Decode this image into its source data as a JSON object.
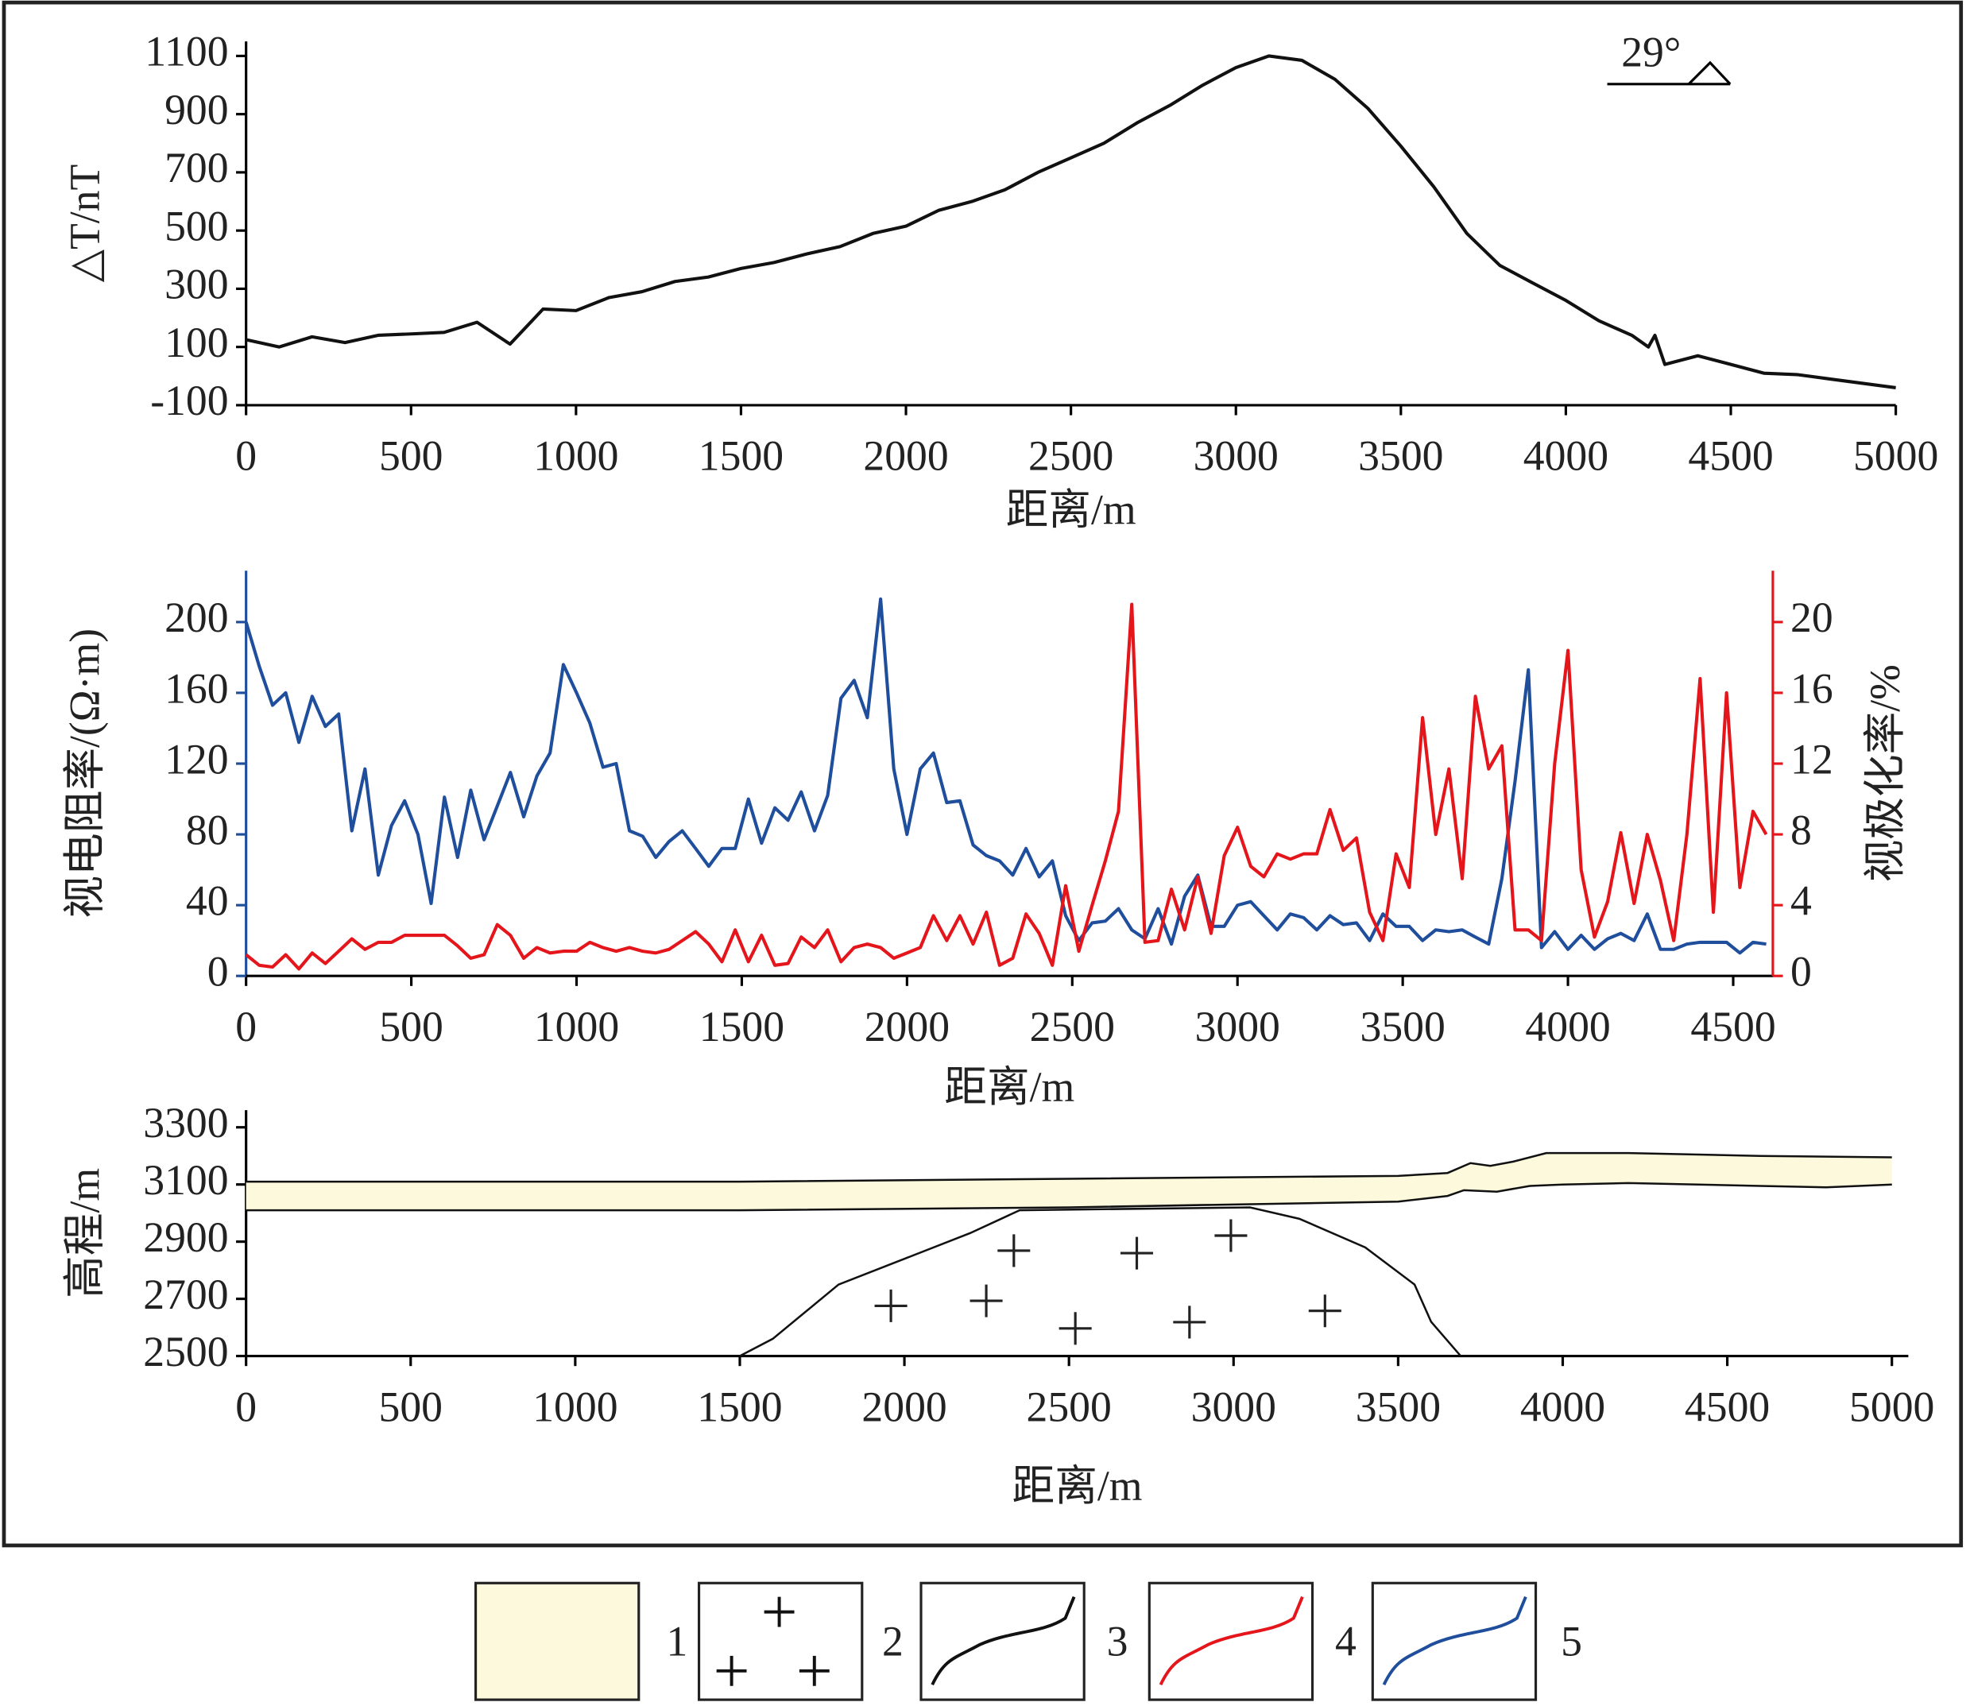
{
  "chart_data": [
    {
      "type": "line",
      "y_label": "△T/nT",
      "x_label": "距离/m",
      "annotation": "29°",
      "xlim": [
        0,
        5000
      ],
      "ylim": [
        -100,
        1150
      ],
      "xticks": [
        0,
        500,
        1000,
        1500,
        2000,
        2500,
        3000,
        3500,
        4000,
        4500,
        5000
      ],
      "yticks": [
        -100,
        100,
        300,
        500,
        700,
        900,
        1100
      ],
      "x": [
        0,
        100,
        200,
        300,
        400,
        500,
        600,
        700,
        800,
        900,
        1000,
        1100,
        1200,
        1300,
        1400,
        1500,
        1600,
        1700,
        1800,
        1900,
        2000,
        2100,
        2200,
        2300,
        2400,
        2500,
        2600,
        2700,
        2800,
        2900,
        3000,
        3100,
        3200,
        3300,
        3400,
        3500,
        3600,
        3700,
        3800,
        3900,
        4000,
        4100,
        4200,
        4250,
        4270,
        4300,
        4400,
        4500,
        4600,
        4700,
        4800,
        4900,
        5000
      ],
      "series": [
        {
          "color": "#111111",
          "values": [
            125,
            100,
            135,
            115,
            140,
            145,
            150,
            185,
            110,
            230,
            225,
            270,
            290,
            325,
            340,
            370,
            390,
            420,
            445,
            490,
            515,
            570,
            600,
            640,
            700,
            750,
            800,
            870,
            930,
            1000,
            1060,
            1100,
            1085,
            1020,
            920,
            790,
            650,
            490,
            380,
            320,
            260,
            190,
            140,
            100,
            140,
            40,
            70,
            40,
            10,
            5,
            -10,
            -25,
            -40
          ]
        }
      ]
    },
    {
      "type": "line",
      "y_label": "视电阻率/(Ω·m)",
      "y2_label": "视极化率/%",
      "x_label": "距离/m",
      "xlim": [
        0,
        4620
      ],
      "ylim": [
        0,
        229
      ],
      "y2lim": [
        0,
        22.9
      ],
      "xticks": [
        0,
        500,
        1000,
        1500,
        2000,
        2500,
        3000,
        3500,
        4000,
        4500
      ],
      "yticks": [
        0,
        40,
        80,
        120,
        160,
        200
      ],
      "y2ticks": [
        0,
        4,
        8,
        12,
        16,
        20
      ],
      "axis_color": "#1f4e9c",
      "axis2_color": "#e4161c",
      "x": [
        0,
        40,
        80,
        120,
        160,
        200,
        240,
        280,
        320,
        360,
        400,
        440,
        480,
        520,
        560,
        600,
        640,
        680,
        720,
        760,
        800,
        840,
        880,
        920,
        960,
        1000,
        1040,
        1080,
        1120,
        1160,
        1200,
        1240,
        1280,
        1320,
        1360,
        1400,
        1440,
        1480,
        1520,
        1560,
        1600,
        1640,
        1680,
        1720,
        1760,
        1800,
        1840,
        1880,
        1920,
        1960,
        2000,
        2040,
        2080,
        2120,
        2160,
        2200,
        2240,
        2280,
        2320,
        2360,
        2400,
        2440,
        2480,
        2520,
        2560,
        2600,
        2640,
        2680,
        2720,
        2760,
        2800,
        2840,
        2880,
        2920,
        2960,
        3000,
        3040,
        3080,
        3120,
        3160,
        3200,
        3240,
        3280,
        3320,
        3360,
        3400,
        3440,
        3480,
        3520,
        3560,
        3600,
        3640,
        3680,
        3720,
        3760,
        3800,
        3840,
        3880,
        3920,
        3960,
        4000,
        4040,
        4080,
        4120,
        4160,
        4200,
        4240,
        4280,
        4320,
        4360,
        4400,
        4440,
        4480,
        4520,
        4560,
        4600
      ],
      "series": [
        {
          "color": "#1f4e9c",
          "values": [
            200,
            175,
            153,
            160,
            132,
            158,
            141,
            148,
            82,
            117,
            57,
            85,
            99,
            80,
            41,
            101,
            67,
            105,
            77,
            96,
            115,
            90,
            113,
            126,
            176,
            160,
            143,
            118,
            120,
            82,
            79,
            67,
            76,
            82,
            72,
            62,
            72,
            72,
            100,
            75,
            95,
            88,
            104,
            82,
            102,
            157,
            167,
            146,
            213,
            117,
            80,
            117,
            126,
            98,
            99,
            74,
            68,
            65,
            57,
            72,
            56,
            65,
            34,
            20,
            30,
            31,
            38,
            26,
            21,
            38,
            18,
            45,
            57,
            28,
            28,
            40,
            42,
            34,
            26,
            35,
            33,
            26,
            34,
            29,
            30,
            20,
            35,
            28,
            28,
            20,
            26,
            25,
            26,
            22,
            18,
            55,
            110,
            173,
            16,
            25,
            15,
            23,
            15,
            21,
            24,
            20,
            35,
            15,
            15,
            18,
            19,
            19,
            19,
            13,
            19,
            18
          ]
        },
        {
          "color": "#e4161c",
          "axis": "y2",
          "values": [
            1.2,
            0.6,
            0.5,
            1.2,
            0.4,
            1.3,
            0.7,
            1.4,
            2.1,
            1.5,
            1.9,
            1.9,
            2.3,
            2.3,
            2.3,
            2.3,
            1.7,
            1.0,
            1.2,
            2.9,
            2.3,
            1.0,
            1.6,
            1.3,
            1.4,
            1.4,
            1.9,
            1.6,
            1.4,
            1.6,
            1.4,
            1.3,
            1.5,
            2.0,
            2.5,
            1.8,
            0.8,
            2.6,
            0.8,
            2.3,
            0.6,
            0.7,
            2.2,
            1.6,
            2.6,
            0.8,
            1.6,
            1.8,
            1.6,
            1.0,
            1.3,
            1.6,
            3.4,
            2.0,
            3.4,
            1.8,
            3.6,
            0.6,
            1.0,
            3.5,
            2.4,
            0.6,
            5.1,
            1.4,
            4.0,
            6.5,
            9.3,
            21.0,
            1.9,
            2.0,
            4.9,
            2.6,
            5.6,
            2.4,
            6.8,
            8.4,
            6.2,
            5.6,
            6.9,
            6.6,
            6.9,
            6.9,
            9.4,
            7.1,
            7.8,
            3.6,
            2.0,
            6.9,
            5.0,
            14.6,
            8.0,
            11.7,
            5.5,
            15.8,
            11.7,
            13.0,
            2.6,
            2.6,
            2.0,
            12.0,
            18.4,
            6.0,
            2.2,
            4.2,
            8.1,
            4.1,
            8.0,
            5.4,
            2.0,
            8.0,
            16.8,
            3.6,
            16.0,
            5.0,
            9.3,
            8.0
          ]
        }
      ]
    },
    {
      "type": "section",
      "y_label": "高程/m",
      "x_label": "距离/m",
      "xlim": [
        0,
        5050
      ],
      "ylim": [
        2500,
        3360
      ],
      "xticks": [
        0,
        500,
        1000,
        1500,
        2000,
        2500,
        3000,
        3500,
        4000,
        4500,
        5000
      ],
      "yticks": [
        2500,
        2700,
        2900,
        3100,
        3300
      ],
      "cover_color": "#fdf9dc",
      "series": [
        {
          "x": [
            0,
            1500,
            2500,
            3500,
            3650,
            3720,
            3780,
            3850,
            3950,
            4200,
            4600,
            5000
          ],
          "values": [
            3110,
            3110,
            3120,
            3130,
            3140,
            3175,
            3165,
            3180,
            3210,
            3210,
            3200,
            3195
          ]
        },
        {
          "x": [
            0,
            1500,
            2500,
            3500,
            3650,
            3700,
            3800,
            3900,
            4000,
            4200,
            4600,
            4800,
            5000
          ],
          "values": [
            3010,
            3010,
            3020,
            3040,
            3060,
            3080,
            3075,
            3095,
            3100,
            3105,
            3095,
            3090,
            3100
          ]
        },
        {
          "x": [
            1500,
            1600,
            1800,
            2000,
            2200,
            2350,
            3050,
            3200,
            3400,
            3550,
            3600,
            3690
          ],
          "values": [
            2500,
            2560,
            2750,
            2840,
            2930,
            3010,
            3020,
            2980,
            2880,
            2750,
            2620,
            2500
          ]
        }
      ]
    }
  ],
  "legend": [
    "1",
    "2",
    "3",
    "4",
    "5"
  ]
}
